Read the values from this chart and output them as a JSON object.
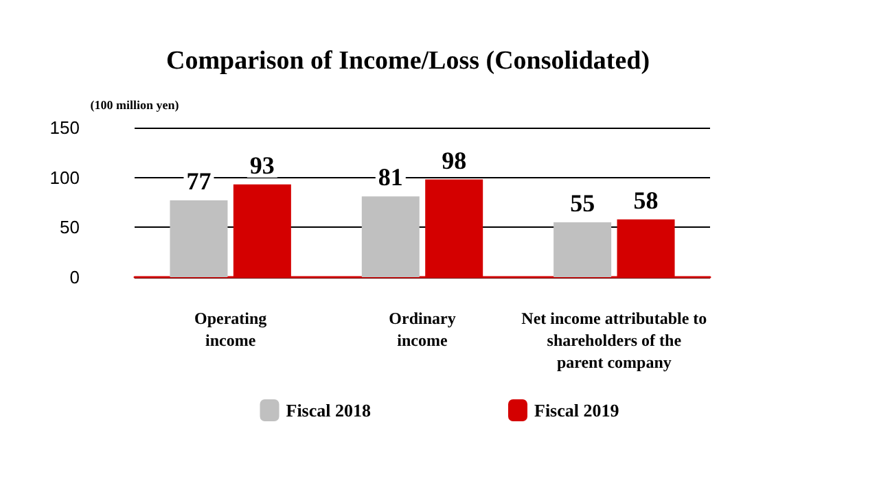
{
  "chart_data": {
    "type": "bar",
    "title": "Comparison of Income/Loss (Consolidated)",
    "ylabel": "(100 million yen)",
    "categories": [
      "Operating\nincome",
      "Ordinary\nincome",
      "Net income attributable to\nshareholders of the\nparent company"
    ],
    "series": [
      {
        "name": "Fiscal 2018",
        "color": "#c0c0c0",
        "values": [
          77,
          81,
          55
        ]
      },
      {
        "name": "Fiscal 2019",
        "color": "#d40000",
        "values": [
          93,
          98,
          58
        ]
      }
    ],
    "ylim": [
      0,
      150
    ],
    "yticks": [
      0,
      50,
      100,
      150
    ],
    "grid": "y",
    "legend": "bottom",
    "data_labels": true
  }
}
